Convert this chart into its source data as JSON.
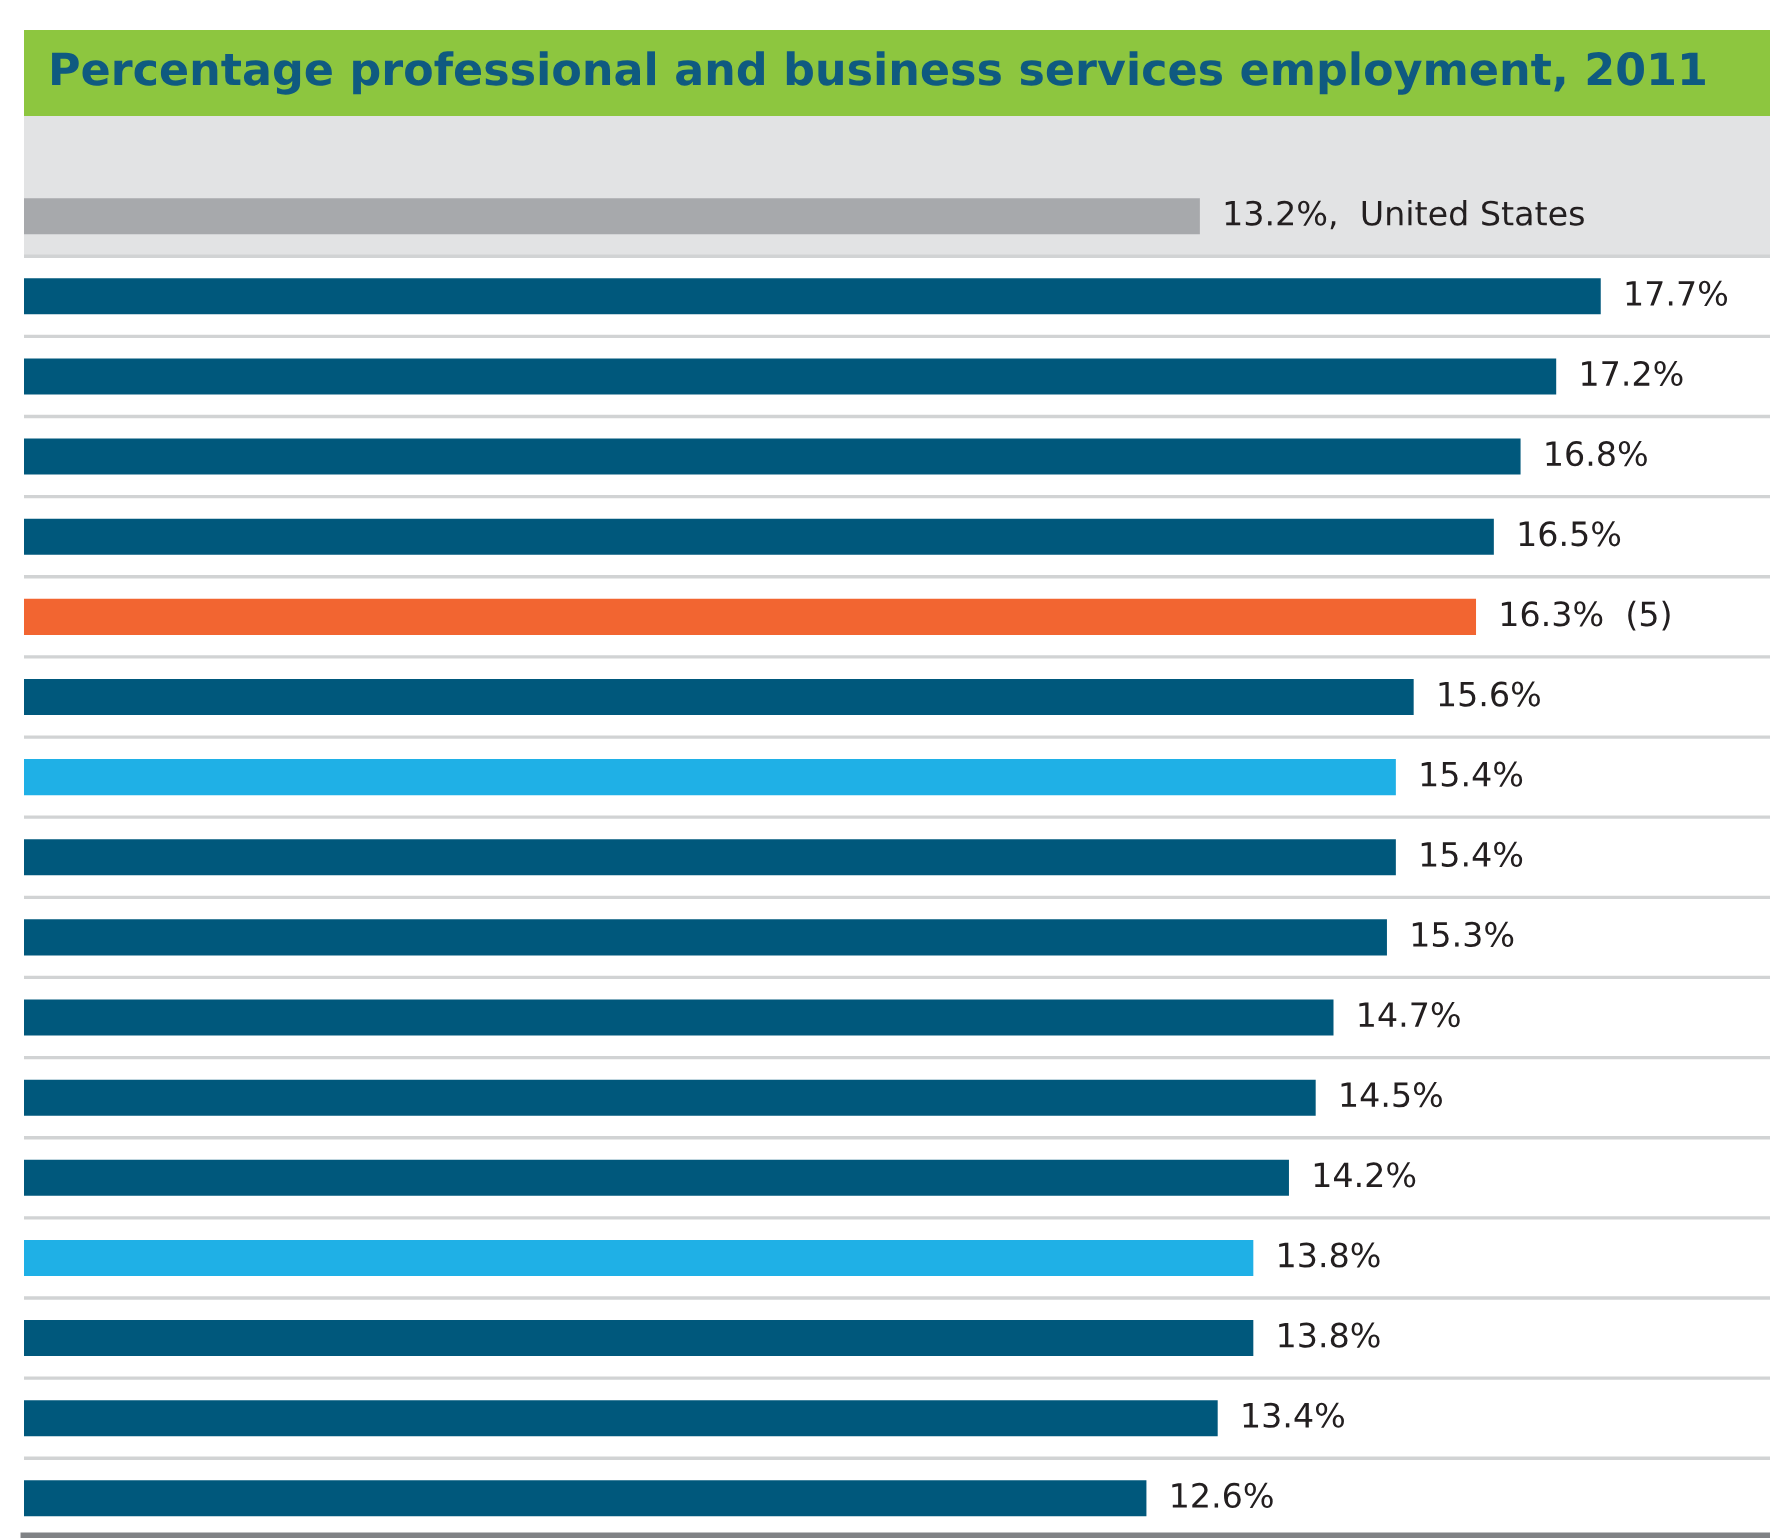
{
  "chart_data": {
    "type": "bar",
    "orientation": "horizontal",
    "title": "Percentage professional and business services employment, 2011",
    "categories": [
      null,
      null,
      null,
      null,
      null,
      null,
      null,
      null,
      null,
      null,
      null,
      null,
      null,
      null,
      null,
      null,
      null
    ],
    "values": [
      13.2,
      17.7,
      17.2,
      16.8,
      16.5,
      16.3,
      15.6,
      15.4,
      15.4,
      15.3,
      14.7,
      14.5,
      14.2,
      13.8,
      13.8,
      13.4,
      12.6
    ],
    "colors": [
      "#a7a9ac",
      "#00587c",
      "#00587c",
      "#00587c",
      "#00587c",
      "#f26531",
      "#00587c",
      "#1fb0e6",
      "#00587c",
      "#00587c",
      "#00587c",
      "#00587c",
      "#00587c",
      "#1fb0e6",
      "#00587c",
      "#00587c",
      "#00587c"
    ],
    "value_labels": [
      "13.2%,  United States",
      "17.7%",
      "17.2%",
      "16.8%",
      "16.5%",
      "16.3%  (5)",
      "15.6%",
      "15.4%",
      "15.4%",
      "15.3%",
      "14.7%",
      "14.5%",
      "14.2%",
      "13.8%",
      "13.8%",
      "13.4%",
      "12.6%"
    ],
    "xlim": [
      0,
      19.6
    ]
  }
}
